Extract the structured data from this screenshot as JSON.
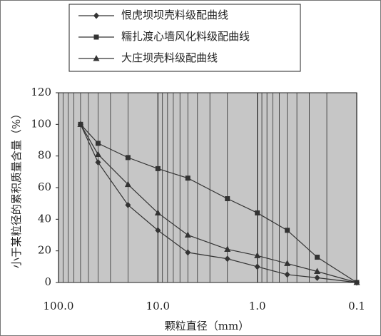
{
  "chart_data": {
    "type": "line",
    "x_label": "颗粒直径（mm）",
    "y_label": "小于某粒径的累积质量含量（%）",
    "x": [
      60,
      40,
      20,
      10,
      5,
      2,
      1,
      0.5,
      0.25,
      0.1
    ],
    "series": [
      {
        "name": "恨虎坝坝壳料级配曲线",
        "color": "#333333",
        "marker": "diamond",
        "values": [
          100,
          76,
          49,
          33,
          19,
          15,
          10,
          5,
          3,
          0
        ]
      },
      {
        "name": "糯扎渡心墙风化料级配曲线",
        "color": "#333333",
        "marker": "square",
        "values": [
          100,
          88,
          79,
          72,
          66,
          53,
          44,
          33,
          16,
          0
        ]
      },
      {
        "name": "大庄坝壳料级配曲线",
        "color": "#333333",
        "marker": "triangle",
        "values": [
          100,
          81,
          62,
          44,
          30,
          21,
          17,
          12,
          7,
          0
        ]
      }
    ],
    "xscale": "log",
    "xlim": [
      100,
      0.1
    ],
    "xticks": [
      {
        "value": 100,
        "label": "100.0"
      },
      {
        "value": 10,
        "label": "10.0"
      },
      {
        "value": 1,
        "label": "1.0"
      },
      0.1
    ],
    "ylim": [
      0,
      120
    ],
    "yticks": [
      0,
      20,
      40,
      60,
      80,
      100,
      120
    ],
    "grid": true,
    "legend": "top"
  }
}
